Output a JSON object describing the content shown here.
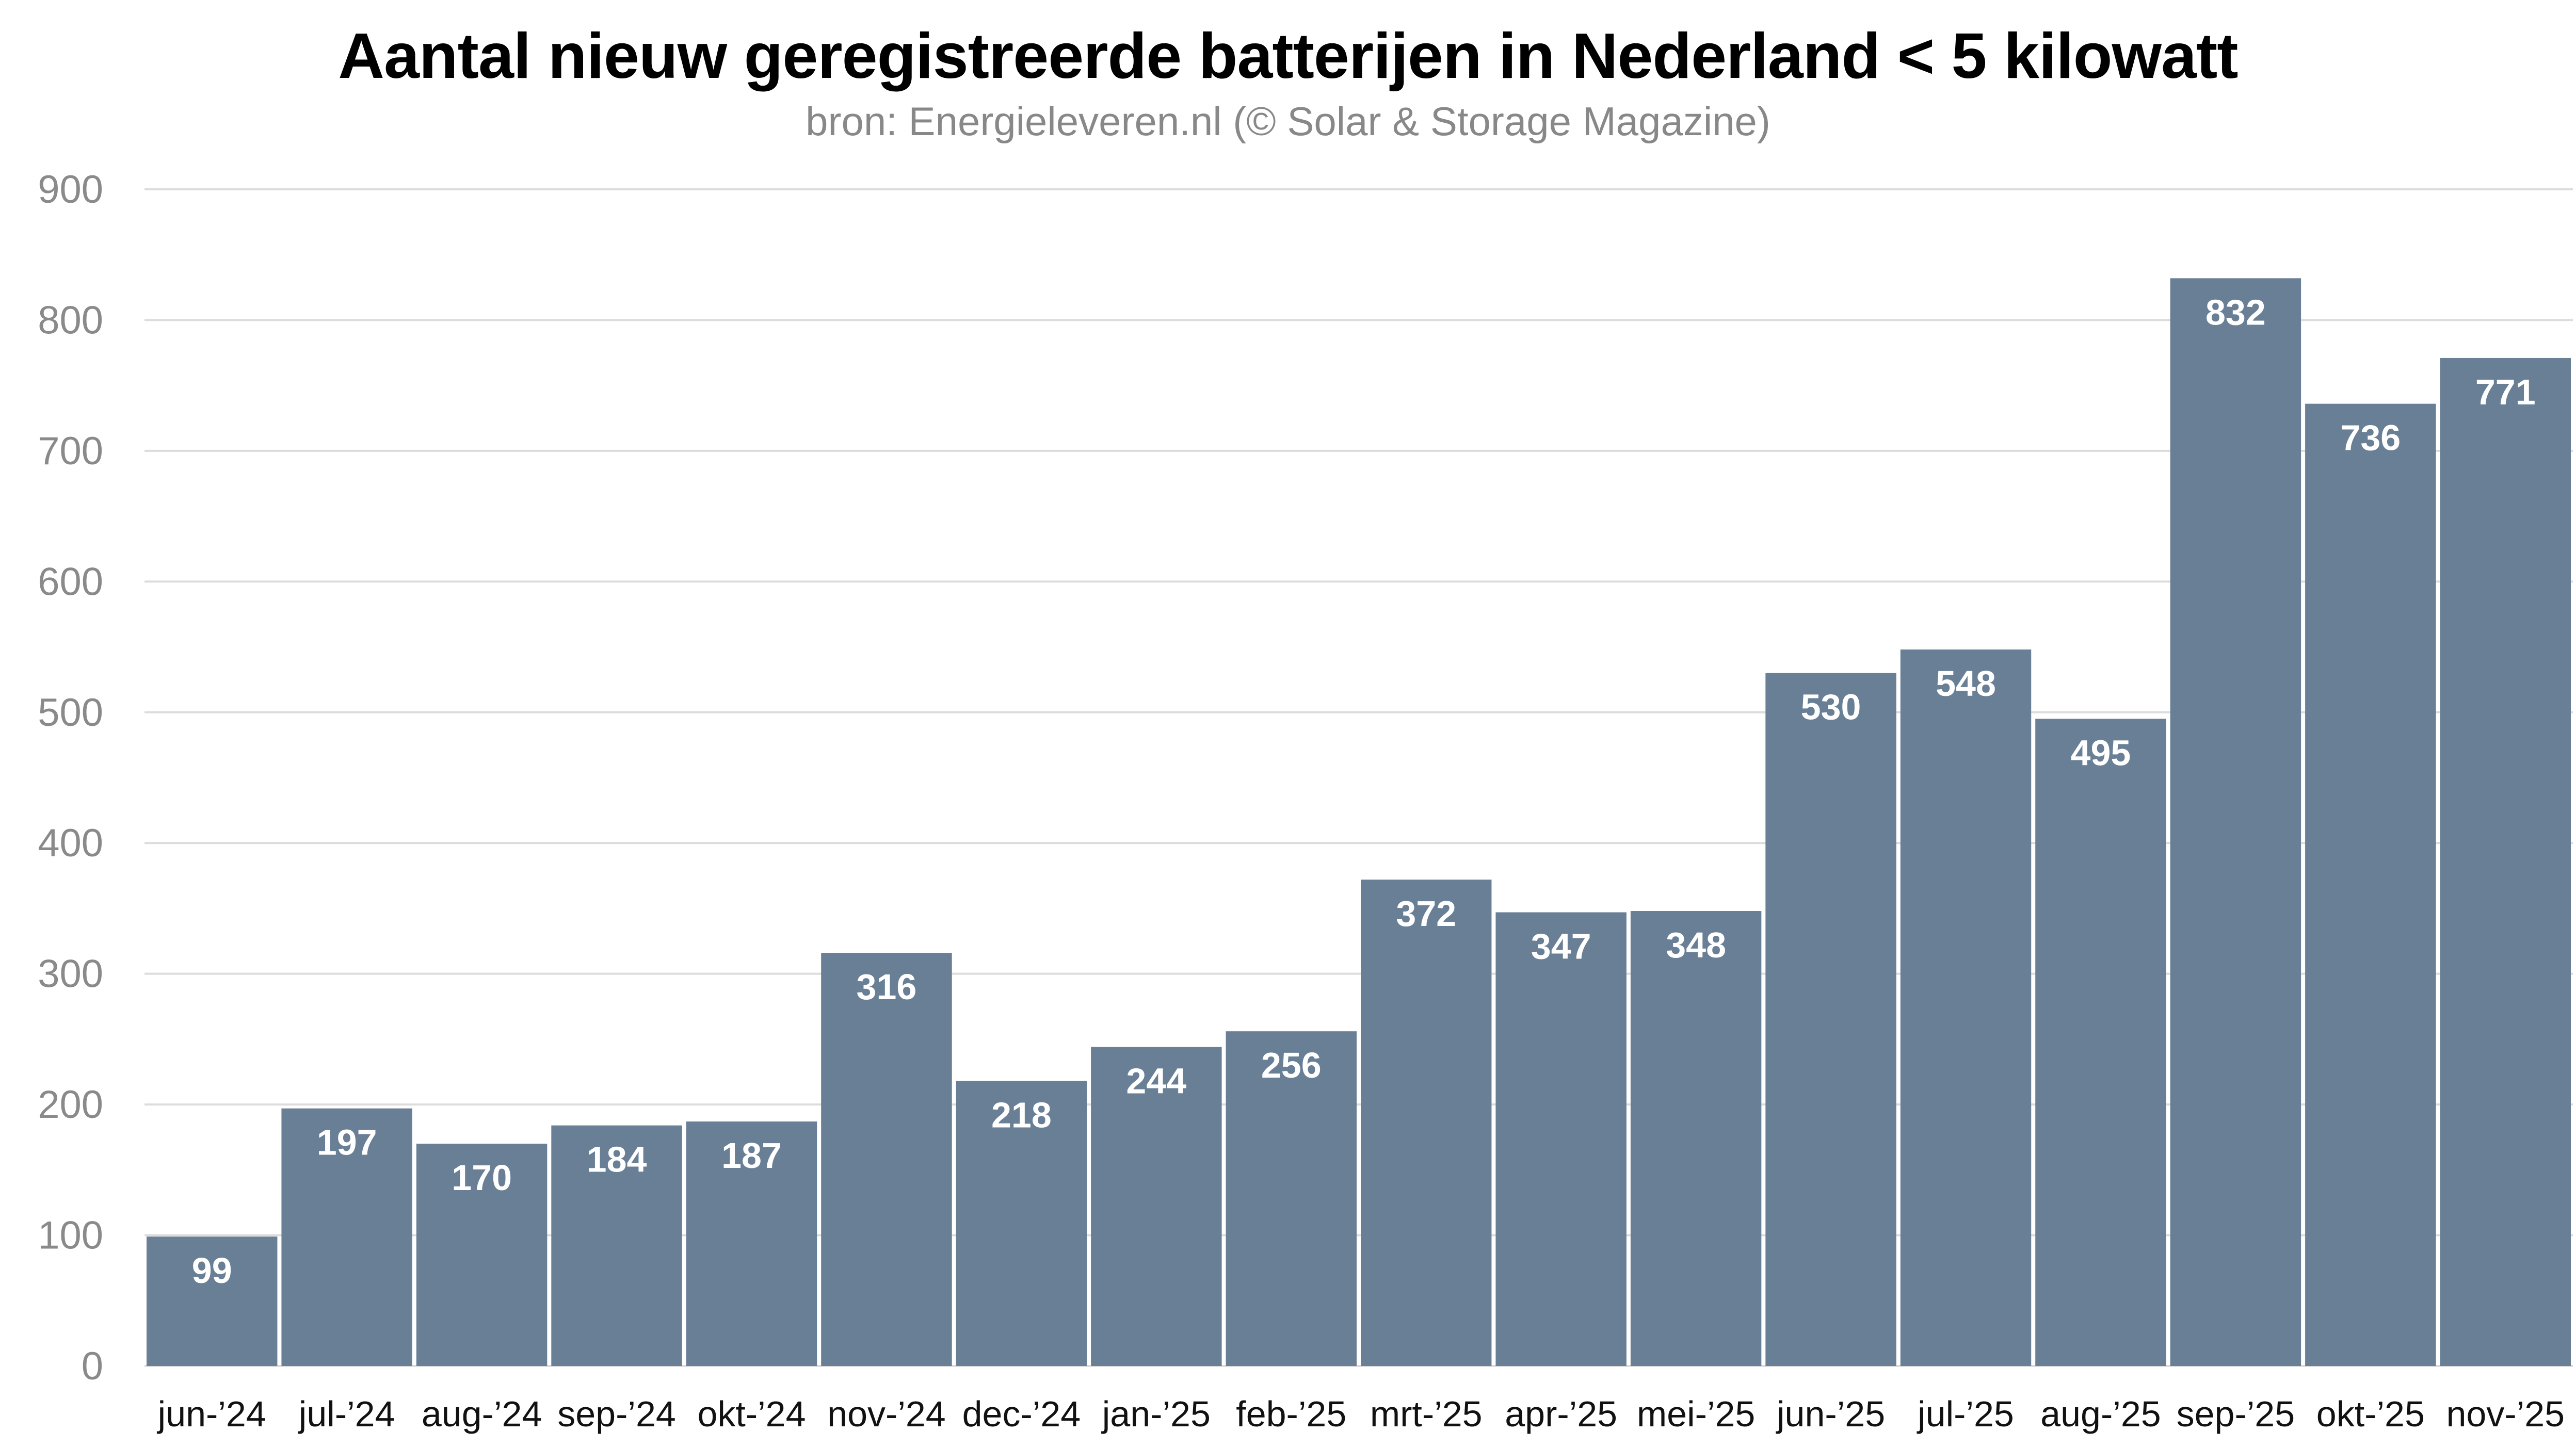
{
  "chart_data": {
    "type": "bar",
    "title": "Aantal nieuw geregistreerde batterijen in Nederland < 5 kilowatt",
    "subtitle": "bron: Energieleveren.nl (© Solar & Storage Magazine)",
    "xlabel": "",
    "ylabel": "",
    "categories": [
      "jun-’24",
      "jul-’24",
      "aug-’24",
      "sep-’24",
      "okt-’24",
      "nov-’24",
      "dec-’24",
      "jan-’25",
      "feb-’25",
      "mrt-’25",
      "apr-’25",
      "mei-’25",
      "jun-’25",
      "jul-’25",
      "aug-’25",
      "sep-’25",
      "okt-’25",
      "nov-’25"
    ],
    "values": [
      99,
      197,
      170,
      184,
      187,
      316,
      218,
      244,
      256,
      372,
      347,
      348,
      530,
      548,
      495,
      832,
      736,
      771
    ],
    "ylim": [
      0,
      900
    ],
    "yticks": [
      0,
      100,
      200,
      300,
      400,
      500,
      600,
      700,
      800,
      900
    ],
    "grid": true,
    "legend": "none",
    "data_labels": true,
    "colors": {
      "bar": "#687f96",
      "grid": "#dcdcdc",
      "data_label": "#ffffff",
      "tick_label_y": "#8a8a8a",
      "tick_label_x": "#111111"
    }
  }
}
